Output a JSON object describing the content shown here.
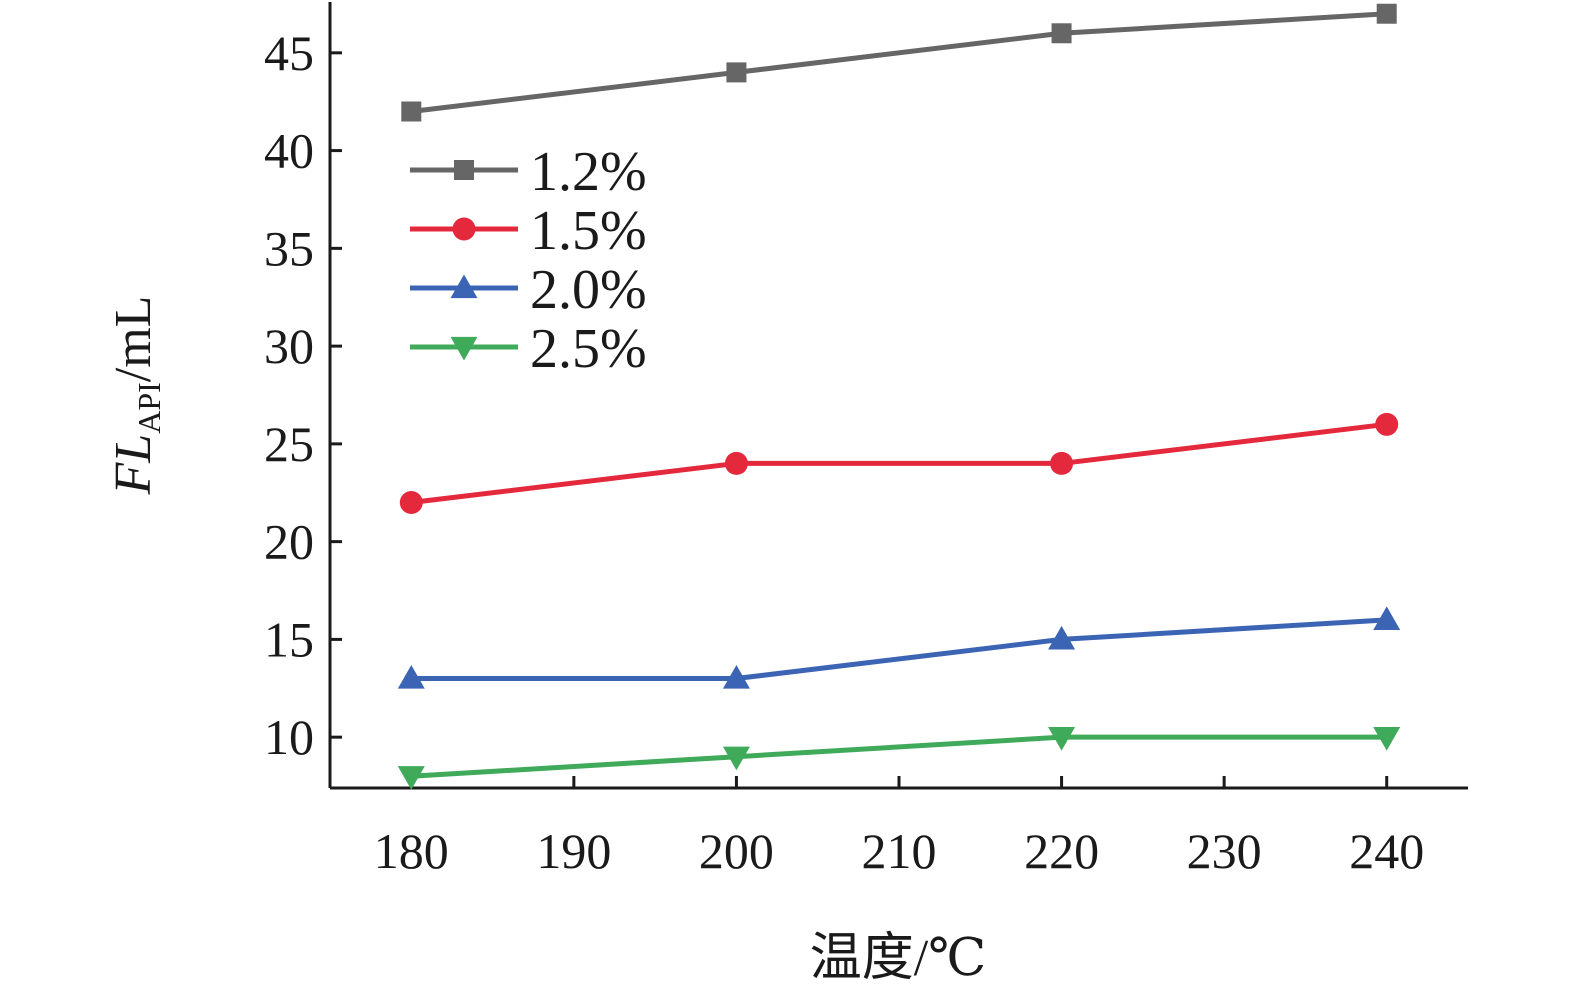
{
  "chart_data": {
    "type": "line",
    "x": [
      180,
      200,
      220,
      240
    ],
    "series": [
      {
        "name": "1.2%",
        "values": [
          42,
          44,
          46,
          47
        ],
        "color": "#666666",
        "marker": "square"
      },
      {
        "name": "1.5%",
        "values": [
          22,
          24,
          24,
          26
        ],
        "color": "#e5293d",
        "marker": "circle"
      },
      {
        "name": "2.0%",
        "values": [
          13,
          13,
          15,
          16
        ],
        "color": "#3c64b4",
        "marker": "triangle-up"
      },
      {
        "name": "2.5%",
        "values": [
          8,
          9,
          10,
          10
        ],
        "color": "#3faa5a",
        "marker": "triangle-down"
      }
    ],
    "xlabel": "温度/℃",
    "ylabel": {
      "main": "FL",
      "sub": "API",
      "unit": "/mL"
    },
    "xlim": [
      175,
      245
    ],
    "ylim": [
      7.4,
      47.6
    ],
    "xticks": [
      180,
      190,
      200,
      210,
      220,
      230,
      240
    ],
    "yticks": [
      10,
      15,
      20,
      25,
      30,
      35,
      40,
      45
    ],
    "grid": false,
    "legend_position": "top-left"
  }
}
